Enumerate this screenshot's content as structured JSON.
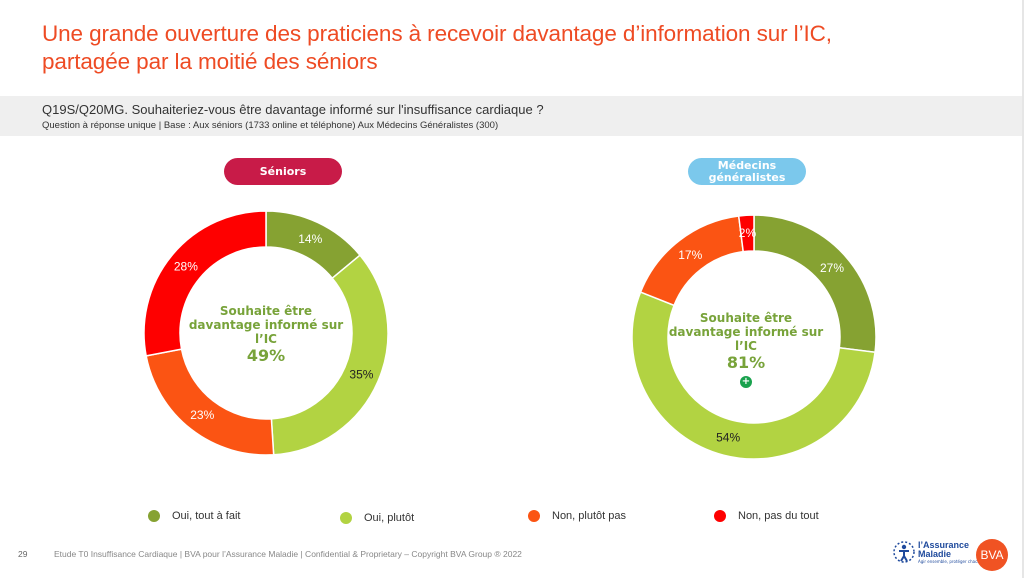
{
  "title": {
    "line1": "Une grande ouverture des praticiens à recevoir davantage d’information sur l’IC,",
    "line2": "partagée par la moitié des séniors"
  },
  "question": {
    "text": "Q19S/Q20MG. Souhaiteriez-vous être davantage informé sur l'insuffisance cardiaque ?",
    "base": "Question à réponse unique | Base : Aux séniors (1733 online et téléphone) Aux Médecins Généralistes (300)"
  },
  "colors": {
    "oui_tout": "#86a232",
    "oui_plutot": "#b2d342",
    "non_plutot": "#fb5413",
    "non_pas": "#fe0000"
  },
  "chart_data": [
    {
      "type": "pie",
      "title": "Séniors",
      "categories": [
        "Oui, tout à fait",
        "Oui, plutôt",
        "Non, plutôt pas",
        "Non, pas du tout"
      ],
      "values": [
        14,
        35,
        23,
        28
      ],
      "labels": [
        "14%",
        "35%",
        "23%",
        "28%"
      ],
      "center_label": "Souhaite être davantage informé sur l’IC",
      "center_value": "49%",
      "title_color": "#c81b48"
    },
    {
      "type": "pie",
      "title": "Médecins généralistes",
      "categories": [
        "Oui, tout à fait",
        "Oui, plutôt",
        "Non, plutôt pas",
        "Non, pas du tout"
      ],
      "values": [
        27,
        54,
        17,
        2
      ],
      "labels": [
        "27%",
        "54%",
        "17%",
        "2%"
      ],
      "center_label": "Souhaite être davantage informé sur l’IC",
      "center_value": "81%",
      "title_color": "#7bc8ec"
    }
  ],
  "legend": [
    {
      "label": "Oui, tout à fait",
      "color": "#86a232"
    },
    {
      "label": "Oui, plutôt",
      "color": "#b2d342"
    },
    {
      "label": "Non, plutôt pas",
      "color": "#fb5413"
    },
    {
      "label": "Non, pas du tout",
      "color": "#fe0000"
    }
  ],
  "footer": {
    "page": "29",
    "text": "Etude T0 Insuffisance Cardiaque | BVA pour l’Assurance Maladie | Confidential & Proprietary – Copyright BVA Group ®  2022",
    "logo_am_line1": "l’Assurance",
    "logo_am_line2": "Maladie",
    "logo_am_tag": "Agir ensemble, protéger chacun",
    "logo_bva": "BVA"
  },
  "significance_icon": "plus-icon"
}
